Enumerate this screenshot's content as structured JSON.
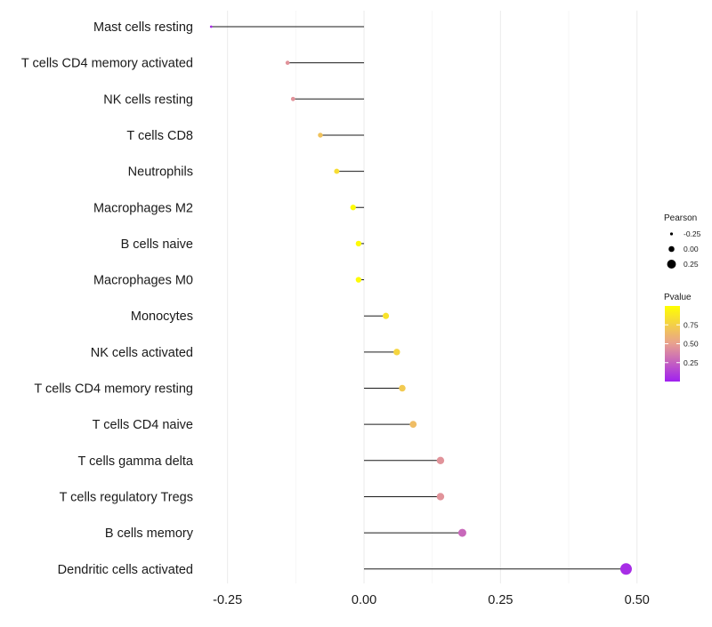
{
  "chart_data": {
    "type": "lollipop",
    "title": "",
    "xlabel": "",
    "ylabel": "",
    "xlim": [
      -0.3,
      0.52
    ],
    "x_ticks": [
      {
        "value": -0.25,
        "label": "-0.25"
      },
      {
        "value": 0.0,
        "label": "0.00"
      },
      {
        "value": 0.25,
        "label": "0.25"
      },
      {
        "value": 0.5,
        "label": "0.50"
      }
    ],
    "grid": true,
    "categories": [
      "Mast cells resting",
      "T cells CD4 memory activated",
      "NK cells resting",
      "T cells CD8",
      "Neutrophils",
      "Macrophages M2",
      "B cells naive",
      "Macrophages M0",
      "Monocytes",
      "NK cells activated",
      "T cells CD4 memory resting",
      "T cells CD4 naive",
      "T cells gamma delta",
      "T cells regulatory  Tregs ",
      "B cells memory",
      "Dendritic cells activated"
    ],
    "pearson": [
      -0.28,
      -0.14,
      -0.13,
      -0.08,
      -0.05,
      -0.02,
      -0.01,
      -0.01,
      0.04,
      0.06,
      0.07,
      0.09,
      0.14,
      0.14,
      0.18,
      0.48
    ],
    "pvalue": [
      0.05,
      0.45,
      0.45,
      0.68,
      0.82,
      0.98,
      0.98,
      0.98,
      0.85,
      0.78,
      0.72,
      0.65,
      0.45,
      0.45,
      0.28,
      0.05
    ],
    "legend_size": {
      "title": "Pearson",
      "entries": [
        {
          "value": -0.25,
          "label": "-0.25"
        },
        {
          "value": 0.0,
          "label": "0.00"
        },
        {
          "value": 0.25,
          "label": "0.25"
        }
      ]
    },
    "legend_color": {
      "title": "Pvalue",
      "ticks": [
        {
          "value": 0.75,
          "label": "0.75"
        },
        {
          "value": 0.5,
          "label": "0.50"
        },
        {
          "value": 0.25,
          "label": "0.25"
        }
      ],
      "range": [
        0.0,
        1.0
      ],
      "colors": [
        "#a020f0",
        "#e8a090",
        "#ffff00"
      ]
    },
    "legend_placement": "right"
  }
}
